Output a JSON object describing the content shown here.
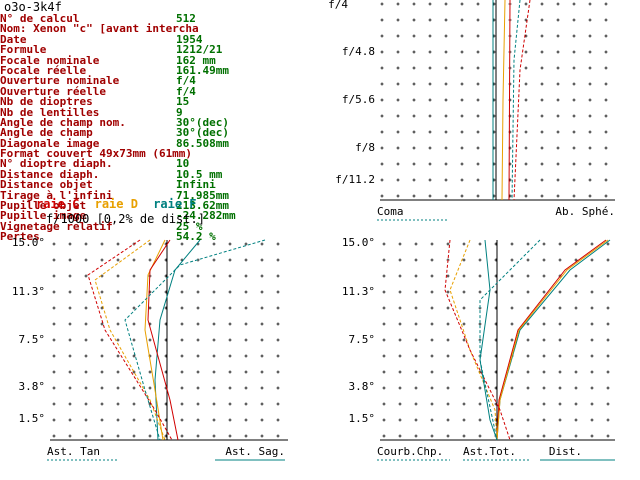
{
  "window_title": "o3o-3k4f",
  "specs": [
    {
      "label": "N° de calcul",
      "value": "512"
    },
    {
      "label": "Nom: Xenon \"c\" [avant intercha",
      "value": ""
    },
    {
      "label": "Date",
      "value": "1954"
    },
    {
      "label": "Formule",
      "value": "1212/21"
    },
    {
      "label": "Focale nominale",
      "value": "162    mm"
    },
    {
      "label": "Focale réelle",
      "value": "161.49mm"
    },
    {
      "label": "Ouverture nominale",
      "value": "f/4"
    },
    {
      "label": "Ouverture réelle",
      "value": "f/4"
    },
    {
      "label": "Nb de dioptres",
      "value": "15"
    },
    {
      "label": "Nb de lentilles",
      "value": "9"
    },
    {
      "label": "Angle de champ nom.",
      "value": "30°(dec)"
    },
    {
      "label": "Angle de champ",
      "value": "30°(dec)"
    },
    {
      "label": "Diagonale image",
      "value": "86.508mm"
    },
    {
      "label": "Format couvert 49x73mm (61mm)",
      "value": ""
    },
    {
      "label": "N° dioptre diaph.",
      "value": "10"
    },
    {
      "label": "Distance diaph.",
      "value": "10.5   mm"
    },
    {
      "label": "Distance objet",
      "value": "Infini"
    },
    {
      "label": "Tirage à l'infini",
      "value": "71.985mm"
    },
    {
      "label": "Pupille objet",
      "value": "213.62mm"
    },
    {
      "label": "Pupille image",
      "value": "-24.282mm"
    },
    {
      "label": "Vignetage relatif",
      "value": "25 %"
    },
    {
      "label": "Pertes",
      "value": "54.2 %"
    }
  ],
  "legend": [
    {
      "label": "raie C",
      "color": "#d00000"
    },
    {
      "label": "raie D",
      "color": "#e8a000"
    },
    {
      "label": "raie F",
      "color": "#008080"
    }
  ],
  "distortion_note": "f/1000 [0,2% de dist.]",
  "coma_panel": {
    "y_labels": [
      "f/4",
      "f/4.8",
      "f/5.6",
      "f/8",
      "f/11.2"
    ],
    "footer_left": "Coma",
    "footer_right": "Ab. Sphé."
  },
  "astig_panel": {
    "y_labels": [
      "15.0°",
      "11.3°",
      "7.5°",
      "3.8°",
      "1.5°"
    ],
    "footer_left": "Ast. Tan",
    "footer_right": "Ast. Sag."
  },
  "field_panel": {
    "y_labels": [
      "15.0°",
      "11.3°",
      "7.5°",
      "3.8°",
      "1.5°"
    ],
    "footer_left": "Courb.Chp.",
    "footer_mid": "Ast.Tot.",
    "footer_right": "Dist."
  }
}
